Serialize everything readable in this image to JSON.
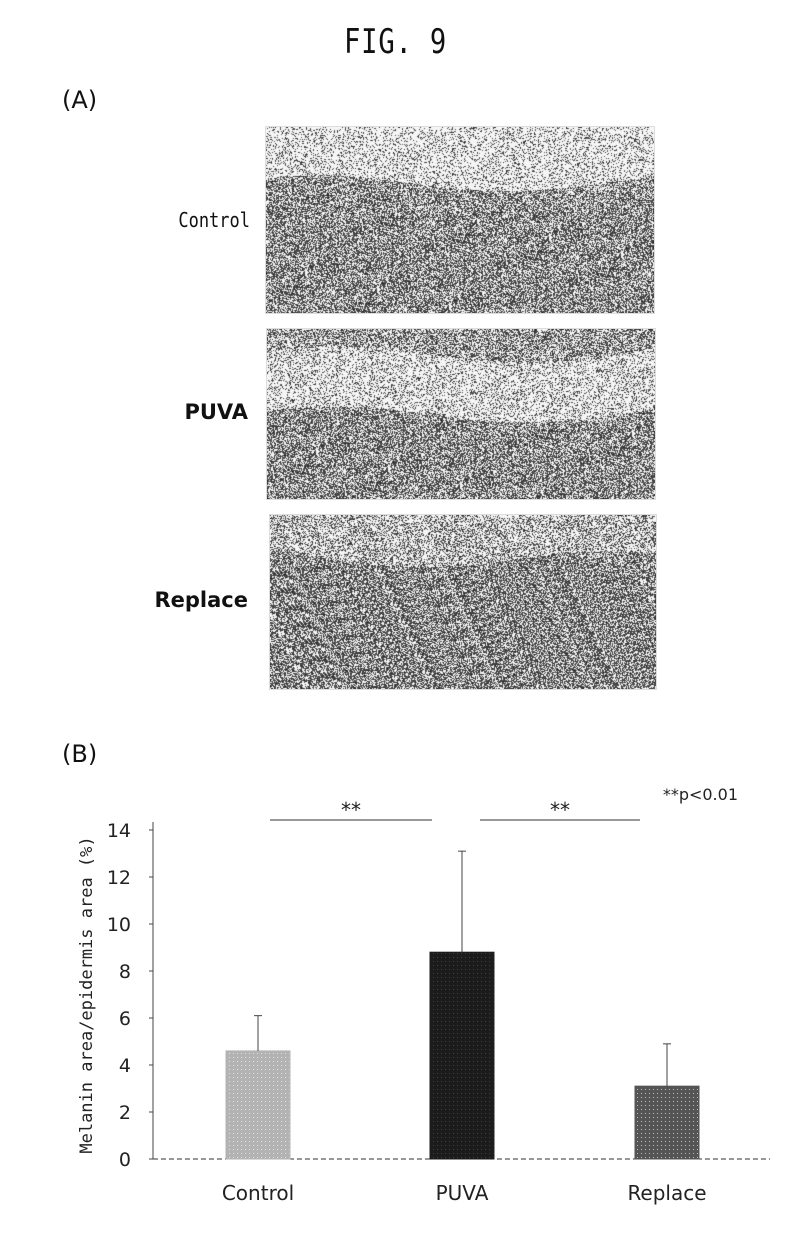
{
  "figure": {
    "title": "FIG. 9",
    "panel_a_label": "(A)",
    "panel_b_label": "(B)",
    "rows": [
      {
        "label": "Control"
      },
      {
        "label": "PUVA"
      },
      {
        "label": "Replace"
      }
    ]
  },
  "chart_data": {
    "type": "bar",
    "categories": [
      "Control",
      "PUVA",
      "Replace"
    ],
    "values": [
      4.6,
      8.8,
      3.1
    ],
    "error": [
      1.5,
      4.3,
      1.8
    ],
    "ylabel": "Melanin area/epidermis area (%)",
    "ylim": [
      0,
      14
    ],
    "yticks": [
      0,
      2,
      4,
      6,
      8,
      10,
      12,
      14
    ],
    "significance": [
      {
        "from": "Control",
        "to": "PUVA",
        "label": "**"
      },
      {
        "from": "PUVA",
        "to": "Replace",
        "label": "**"
      }
    ],
    "note": "**p<0.01",
    "bar_colors": [
      "#b3b3b3",
      "#1c1c1c",
      "#555555"
    ]
  }
}
